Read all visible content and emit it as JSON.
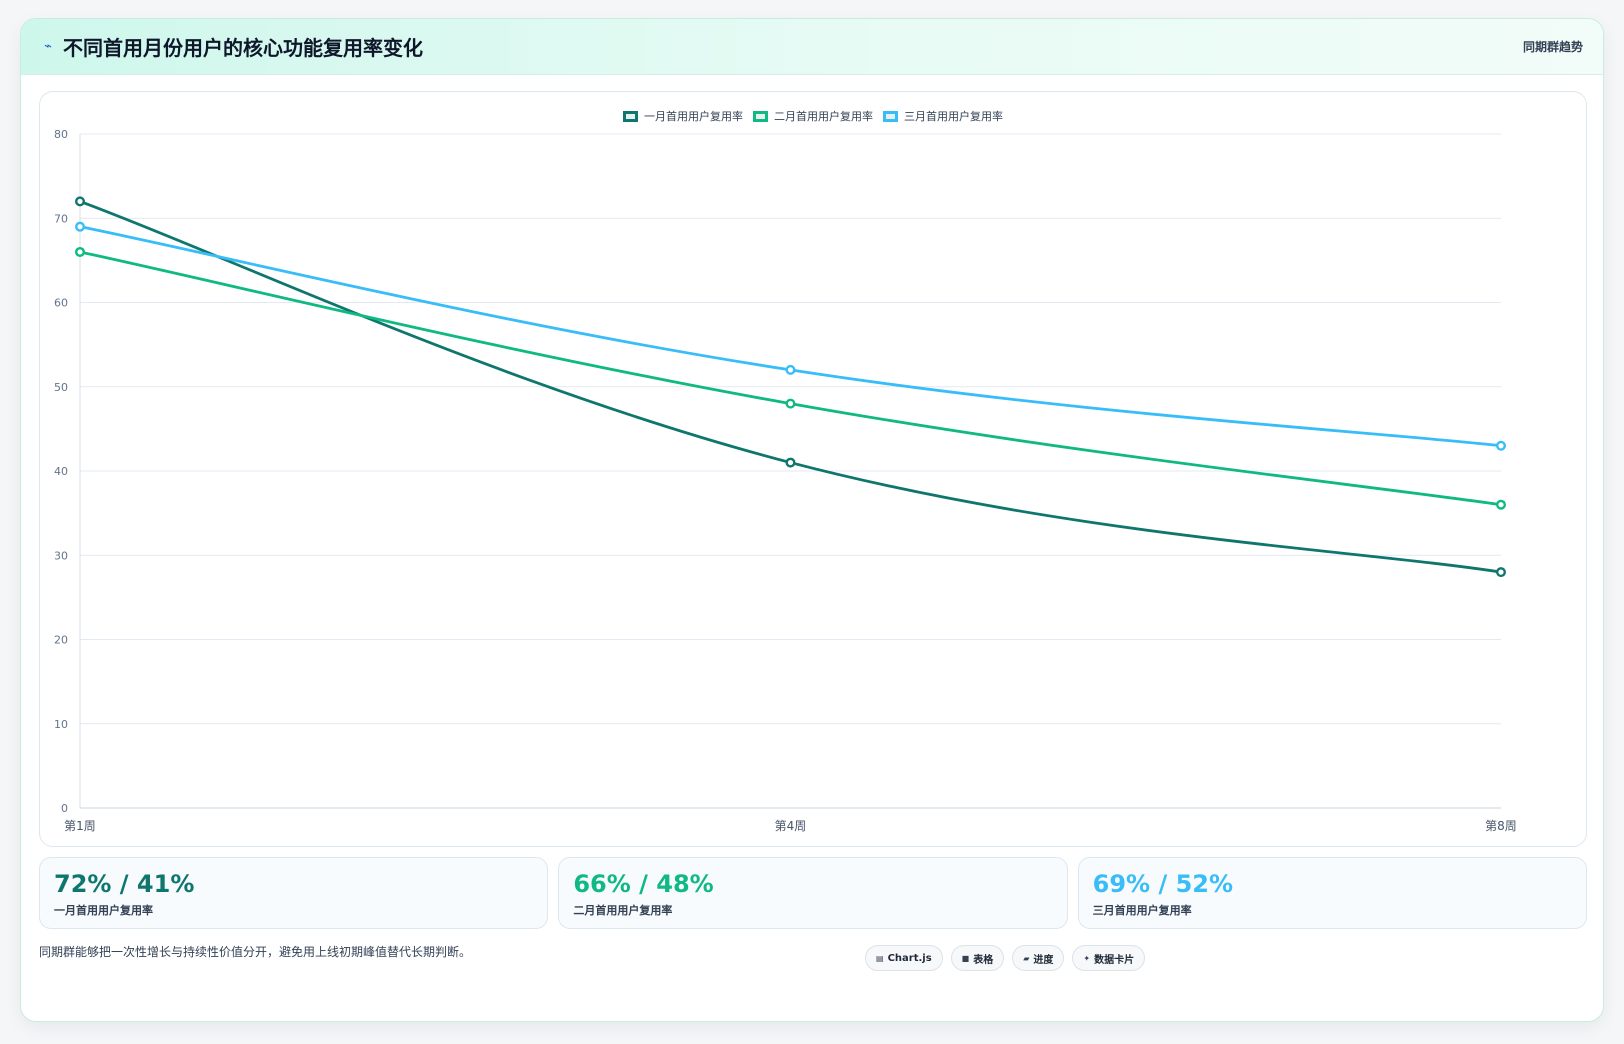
{
  "header": {
    "icon": "lightning-icon",
    "title": "不同首用月份用户的核心功能复用率变化",
    "tag": "同期群趋势"
  },
  "chart_data": {
    "type": "line",
    "title": "",
    "xlabel": "",
    "ylabel": "",
    "categories": [
      "第1周",
      "第4周",
      "第8周"
    ],
    "ylim": [
      0,
      80
    ],
    "yticks": [
      0,
      10,
      20,
      30,
      40,
      50,
      60,
      70,
      80
    ],
    "grid": true,
    "legend_position": "top-center",
    "series": [
      {
        "name": "一月首用用户复用率",
        "values": [
          72,
          41,
          28
        ],
        "color": "#0f766e"
      },
      {
        "name": "二月首用用户复用率",
        "values": [
          66,
          48,
          36
        ],
        "color": "#10b981"
      },
      {
        "name": "三月首用用户复用率",
        "values": [
          69,
          52,
          43
        ],
        "color": "#38bdf8"
      }
    ]
  },
  "stats": [
    {
      "value": "72% / 41%",
      "label": "一月首用用户复用率",
      "color": "#0f766e"
    },
    {
      "value": "66% / 48%",
      "label": "二月首用用户复用率",
      "color": "#10b981"
    },
    {
      "value": "69% / 52%",
      "label": "三月首用用户复用率",
      "color": "#38bdf8"
    }
  ],
  "footer": {
    "note": "同期群能够把一次性增长与持续性价值分开，避免用上线初期峰值替代长期判断。",
    "badges": [
      {
        "icon": "chart-icon",
        "label": "Chart.js"
      },
      {
        "icon": "table-icon",
        "label": "表格"
      },
      {
        "icon": "progress-icon",
        "label": "进度"
      },
      {
        "icon": "sparkle-icon",
        "label": "数据卡片"
      }
    ]
  }
}
